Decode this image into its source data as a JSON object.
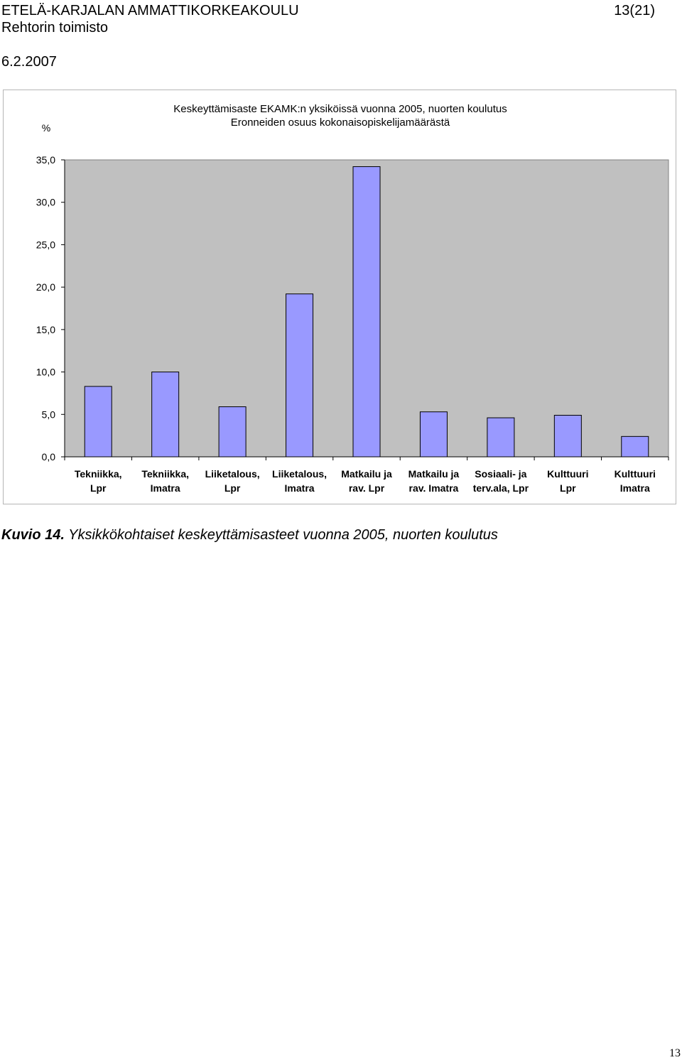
{
  "header": {
    "organization": "ETELÄ-KARJALAN AMMATTIKORKEAKOULU",
    "page": "13(21)",
    "office": "Rehtorin toimisto",
    "date": "6.2.2007"
  },
  "chart_data": {
    "type": "bar",
    "title": "Keskeyttämisaste EKAMK:n yksiköissä vuonna 2005, nuorten koulutus",
    "subtitle": "Eronneiden osuus kokonaisopiskelijamäärästä",
    "ylabel": "%",
    "xlabel": "",
    "ylim": [
      0,
      35
    ],
    "yticks": [
      "0,0",
      "5,0",
      "10,0",
      "15,0",
      "20,0",
      "25,0",
      "30,0",
      "35,0"
    ],
    "categories": [
      [
        "Tekniikka,",
        "Lpr"
      ],
      [
        "Tekniikka,",
        "Imatra"
      ],
      [
        "Liiketalous,",
        "Lpr"
      ],
      [
        "Liiketalous,",
        "Imatra"
      ],
      [
        "Matkailu ja",
        "rav. Lpr"
      ],
      [
        "Matkailu ja",
        "rav. Imatra"
      ],
      [
        "Sosiaali- ja",
        "terv.ala, Lpr"
      ],
      [
        "Kulttuuri",
        "Lpr"
      ],
      [
        "Kulttuuri",
        "Imatra"
      ]
    ],
    "values": [
      8.3,
      10.0,
      5.9,
      19.2,
      34.2,
      5.3,
      4.6,
      4.9,
      2.4
    ],
    "legend": "none",
    "grid": false,
    "colors": {
      "bar": "#9999ff",
      "plot_bg": "#c0c0c0",
      "bar_stroke": "#000000"
    }
  },
  "caption": {
    "number": "Kuvio 14.",
    "text": " Yksikkökohtaiset keskeyttämisasteet vuonna 2005, nuorten koulutus"
  },
  "footer": {
    "page_number": "13"
  }
}
